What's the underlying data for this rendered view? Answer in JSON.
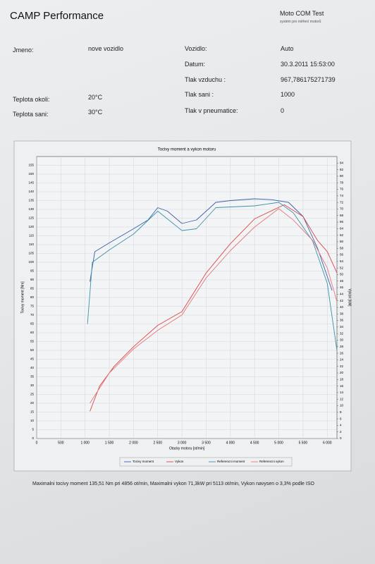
{
  "header": {
    "title": "CAMP Performance",
    "brand": "Moto COM Test",
    "tagline": "systém pro měření motorů"
  },
  "fields": [
    {
      "label": "Jmeno:",
      "value": "nove vozidlo"
    },
    {
      "label": "Teplota okoli:",
      "value": "20°C"
    },
    {
      "label": "Teplota sani:",
      "value": "30°C"
    },
    {
      "label": "Vozidlo:",
      "value": "Auto"
    },
    {
      "label": "Datum:",
      "value": "30.3.2011 15:53:00"
    },
    {
      "label": "Tlak vzduchu :",
      "value": "967,786175271739"
    },
    {
      "label": "Tlak sani :",
      "value": "1000"
    },
    {
      "label": "Tlak v pneumatice:",
      "value": "0"
    }
  ],
  "chart_data": {
    "type": "line",
    "title": "Tocivy moment a vykon motoru",
    "x_label": "Otacky motoru [ot/min]",
    "y_label": "Tocivy moment [Nm]",
    "y2_label": "Vykon [kW]",
    "xlim": [
      0,
      6200
    ],
    "xticks": [
      0,
      500,
      {
        "value": 1000,
        "label": "1 000"
      },
      {
        "value": 1500,
        "label": "1 500"
      },
      {
        "value": 2000,
        "label": "2 000"
      },
      {
        "value": 2500,
        "label": "2 500"
      },
      {
        "value": 3000,
        "label": "3 000"
      },
      {
        "value": 3500,
        "label": "3 500"
      },
      {
        "value": 4000,
        "label": "4 000"
      },
      {
        "value": 4500,
        "label": "4 500"
      },
      {
        "value": 5000,
        "label": "5 000"
      },
      {
        "value": 5500,
        "label": "5 500"
      },
      {
        "value": 6000,
        "label": "6 000"
      }
    ],
    "ylim": [
      0,
      160
    ],
    "yticks": [
      0,
      5,
      10,
      15,
      20,
      25,
      30,
      35,
      40,
      45,
      50,
      55,
      60,
      65,
      70,
      75,
      80,
      85,
      90,
      95,
      100,
      105,
      110,
      115,
      120,
      125,
      130,
      135,
      140,
      145,
      150,
      155
    ],
    "y2lim": [
      0,
      86
    ],
    "y2ticks": [
      0,
      2,
      4,
      6,
      8,
      10,
      12,
      14,
      16,
      18,
      20,
      22,
      24,
      26,
      28,
      30,
      32,
      34,
      36,
      38,
      40,
      42,
      44,
      46,
      48,
      50,
      52,
      54,
      56,
      58,
      60,
      62,
      64,
      66,
      68,
      70,
      72,
      74,
      76,
      78,
      80,
      82,
      84
    ],
    "grid": true,
    "series": [
      {
        "name": "Tocivy moment",
        "color": "#3b5fa8",
        "x": [
          1100,
          1200,
          1500,
          2000,
          2300,
          2500,
          2700,
          3000,
          3300,
          3700,
          4000,
          4500,
          4856,
          5200,
          5500,
          5800,
          6100
        ],
        "values": [
          89,
          106,
          111,
          119,
          124,
          131,
          129,
          122,
          124,
          134,
          135,
          136,
          135.5,
          134,
          126,
          108,
          84
        ]
      },
      {
        "name": "Vykon",
        "color": "#d9464a",
        "axis": "y2",
        "x": [
          1100,
          1300,
          1600,
          2000,
          2500,
          3000,
          3500,
          4000,
          4500,
          5113,
          5500,
          5800,
          6000,
          6200
        ],
        "values": [
          8.3,
          16,
          22,
          28,
          34.5,
          38.7,
          50.5,
          59.4,
          67,
          71.3,
          67.7,
          60.4,
          57,
          50.5
        ]
      },
      {
        "name": "Referencni moment",
        "color": "#3a93a8",
        "x": [
          1050,
          1150,
          1500,
          2000,
          2500,
          3000,
          3300,
          3700,
          4500,
          5000,
          5300,
          5700,
          6000,
          6200
        ],
        "values": [
          65,
          100,
          107,
          116,
          129,
          118,
          119,
          131,
          132,
          134,
          128,
          112,
          88,
          50
        ]
      },
      {
        "name": "Referencni vykon",
        "color": "#e4787a",
        "axis": "y2",
        "x": [
          1100,
          1500,
          2000,
          2500,
          3000,
          3500,
          4000,
          4500,
          5000,
          5300,
          5700,
          6000,
          6200
        ],
        "values": [
          10.8,
          20,
          27.3,
          33,
          37.7,
          49,
          57.3,
          64.5,
          70.1,
          66.6,
          60.4,
          52,
          41.8
        ]
      }
    ]
  },
  "summary": "Maximalni tocivy moment 135,51 Nm pri 4856 ot/min,  Maximalni vykon 71,3kW pri 5113 ot/min,  Vykon navysen o 3,3% podle ISO"
}
